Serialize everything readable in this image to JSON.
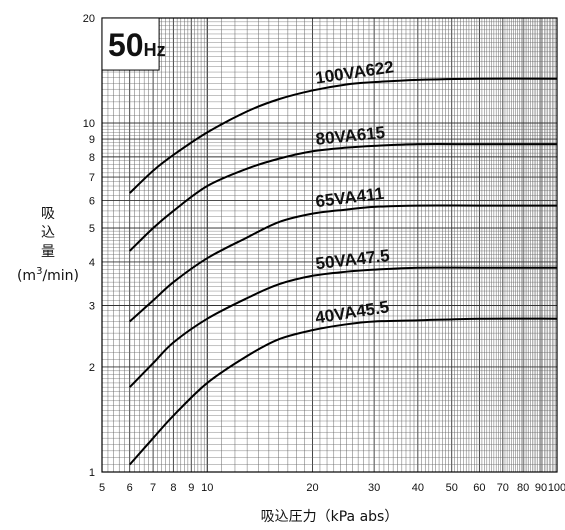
{
  "chart_data": {
    "type": "line",
    "x_scale": "log",
    "y_scale": "log",
    "xlim": [
      5,
      100
    ],
    "ylim": [
      1,
      20
    ],
    "xlabel": "吸込圧力（kPa abs）",
    "ylabel_lines": [
      "吸",
      "込",
      "量"
    ],
    "ylabel_unit": {
      "pre": "(m",
      "sup": "3",
      "post": "/min)"
    },
    "badge": {
      "main": "50",
      "sub": "Hz"
    },
    "x_ticks": [
      {
        "v": 5,
        "t": "5"
      },
      {
        "v": 6,
        "t": "6"
      },
      {
        "v": 7,
        "t": "7"
      },
      {
        "v": 8,
        "t": "8"
      },
      {
        "v": 9,
        "t": "9"
      },
      {
        "v": 10,
        "t": "10"
      },
      {
        "v": 20,
        "t": "20"
      },
      {
        "v": 30,
        "t": "30"
      },
      {
        "v": 40,
        "t": "40"
      },
      {
        "v": 50,
        "t": "50"
      },
      {
        "v": 60,
        "t": "60"
      },
      {
        "v": 70,
        "t": "70"
      },
      {
        "v": 80,
        "t": "80"
      },
      {
        "v": 90,
        "t": "90"
      },
      {
        "v": 100,
        "t": "100"
      }
    ],
    "y_ticks": [
      {
        "v": 1,
        "t": "1"
      },
      {
        "v": 2,
        "t": "2"
      },
      {
        "v": 3,
        "t": "3"
      },
      {
        "v": 4,
        "t": "4"
      },
      {
        "v": 5,
        "t": "5"
      },
      {
        "v": 6,
        "t": "6"
      },
      {
        "v": 7,
        "t": "7"
      },
      {
        "v": 8,
        "t": "8"
      },
      {
        "v": 9,
        "t": "9"
      },
      {
        "v": 10,
        "t": "10"
      },
      {
        "v": 20,
        "t": "20"
      }
    ],
    "series": [
      {
        "name": "100VA622",
        "points": [
          [
            6,
            6.3
          ],
          [
            7,
            7.3
          ],
          [
            8,
            8.1
          ],
          [
            10,
            9.4
          ],
          [
            13,
            10.8
          ],
          [
            16,
            11.7
          ],
          [
            20,
            12.4
          ],
          [
            25,
            12.9
          ],
          [
            30,
            13.1
          ],
          [
            40,
            13.3
          ],
          [
            60,
            13.4
          ],
          [
            100,
            13.4
          ]
        ]
      },
      {
        "name": "80VA615",
        "points": [
          [
            6,
            4.3
          ],
          [
            7,
            5.0
          ],
          [
            8,
            5.6
          ],
          [
            10,
            6.6
          ],
          [
            13,
            7.4
          ],
          [
            16,
            7.9
          ],
          [
            20,
            8.3
          ],
          [
            25,
            8.5
          ],
          [
            30,
            8.6
          ],
          [
            40,
            8.7
          ],
          [
            60,
            8.7
          ],
          [
            100,
            8.7
          ]
        ]
      },
      {
        "name": "65VA411",
        "points": [
          [
            6,
            2.7
          ],
          [
            7,
            3.1
          ],
          [
            8,
            3.5
          ],
          [
            10,
            4.1
          ],
          [
            13,
            4.7
          ],
          [
            16,
            5.2
          ],
          [
            20,
            5.5
          ],
          [
            25,
            5.65
          ],
          [
            30,
            5.75
          ],
          [
            40,
            5.8
          ],
          [
            60,
            5.8
          ],
          [
            100,
            5.8
          ]
        ]
      },
      {
        "name": "50VA47.5",
        "points": [
          [
            6,
            1.75
          ],
          [
            7,
            2.05
          ],
          [
            8,
            2.35
          ],
          [
            10,
            2.75
          ],
          [
            13,
            3.15
          ],
          [
            16,
            3.45
          ],
          [
            20,
            3.65
          ],
          [
            25,
            3.75
          ],
          [
            30,
            3.8
          ],
          [
            40,
            3.85
          ],
          [
            60,
            3.85
          ],
          [
            100,
            3.85
          ]
        ]
      },
      {
        "name": "40VA45.5",
        "points": [
          [
            6,
            1.05
          ],
          [
            7,
            1.25
          ],
          [
            8,
            1.45
          ],
          [
            10,
            1.8
          ],
          [
            13,
            2.15
          ],
          [
            16,
            2.4
          ],
          [
            20,
            2.55
          ],
          [
            25,
            2.65
          ],
          [
            30,
            2.7
          ],
          [
            40,
            2.72
          ],
          [
            60,
            2.75
          ],
          [
            100,
            2.75
          ]
        ]
      }
    ],
    "grid": true,
    "legend": "none"
  }
}
